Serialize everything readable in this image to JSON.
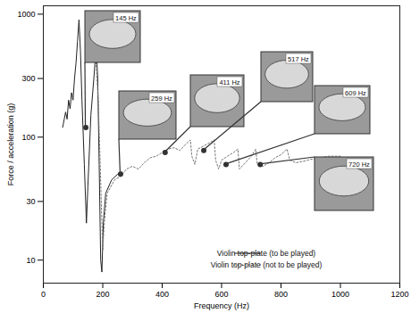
{
  "chart_data": {
    "type": "line",
    "x_label": "Frequency (Hz)",
    "y_label": "Force / acceleration (g)",
    "xlim": [
      0,
      1200
    ],
    "xticks": [
      0,
      200,
      400,
      600,
      800,
      1000,
      1200
    ],
    "ylim": [
      6.5,
      1170
    ],
    "yticks": [
      10,
      30,
      100,
      300,
      1000
    ],
    "log": "y",
    "legend": "lower right",
    "series": [
      {
        "name": "Violin top-plate (to be played)",
        "color": "#222222",
        "line_style": "solid",
        "x": [
          65,
          75,
          80,
          85,
          90,
          95,
          100,
          105,
          110,
          115,
          120,
          125,
          130,
          138,
          145,
          150,
          160,
          170,
          178,
          183,
          188,
          193,
          197,
          202,
          210,
          230,
          250,
          265
        ],
        "values": [
          120,
          160,
          140,
          200,
          170,
          230,
          200,
          300,
          400,
          600,
          900,
          500,
          200,
          60,
          20,
          40,
          150,
          300,
          550,
          300,
          60,
          10,
          8,
          20,
          35,
          45,
          50,
          52
        ]
      },
      {
        "name": "Violin top-plate (not to be played)",
        "color": "#777777",
        "line_style": "dotted",
        "x": [
          175,
          185,
          195,
          200,
          205,
          215,
          240,
          260,
          280,
          300,
          320,
          340,
          360,
          380,
          400,
          420,
          440,
          460,
          480,
          495,
          500,
          510,
          520,
          540,
          560,
          575,
          580,
          590,
          600,
          620,
          640,
          655,
          660,
          680,
          700,
          715,
          720,
          740,
          760,
          780,
          800,
          820,
          830,
          850,
          880,
          900,
          930,
          960,
          1000
        ],
        "values": [
          500,
          200,
          30,
          12,
          20,
          35,
          45,
          48,
          55,
          58,
          55,
          62,
          68,
          70,
          75,
          80,
          82,
          78,
          88,
          95,
          70,
          60,
          80,
          85,
          90,
          95,
          65,
          55,
          65,
          70,
          75,
          80,
          55,
          62,
          70,
          80,
          60,
          58,
          62,
          68,
          72,
          80,
          65,
          62,
          64,
          66,
          68,
          70,
          70
        ]
      }
    ],
    "annotations": [
      {
        "text": "145 Hz",
        "x": 143,
        "y": 120
      },
      {
        "text": "259 Hz",
        "x": 260,
        "y": 50
      },
      {
        "text": "411 Hz",
        "x": 410,
        "y": 75
      },
      {
        "text": "517 Hz",
        "x": 540,
        "y": 78
      },
      {
        "text": "609 Hz",
        "x": 615,
        "y": 60
      },
      {
        "text": "720 Hz",
        "x": 730,
        "y": 60
      }
    ]
  }
}
